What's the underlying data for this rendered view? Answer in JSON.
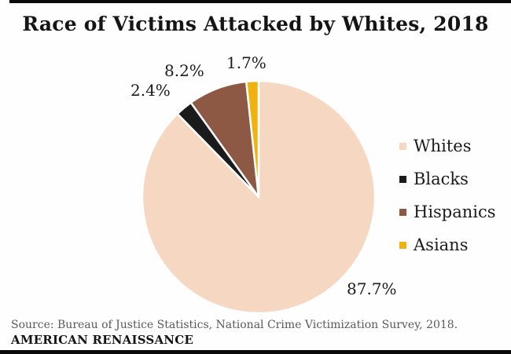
{
  "page": {
    "title": "Race of Victims Attacked by Whites, 2018"
  },
  "chart_data": {
    "type": "pie",
    "title": "Race of Victims Attacked by Whites, 2018",
    "unit": "%",
    "legend_position": "right",
    "slices": [
      {
        "name": "Whites",
        "value": 87.7,
        "label": "87.7%",
        "color": "#F6D7C2"
      },
      {
        "name": "Blacks",
        "value": 2.4,
        "label": "2.4%",
        "color": "#1B1B1B"
      },
      {
        "name": "Hispanics",
        "value": 8.2,
        "label": "8.2%",
        "color": "#8D5944"
      },
      {
        "name": "Asians",
        "value": 1.7,
        "label": "1.7%",
        "color": "#EFB311"
      }
    ]
  },
  "footer": {
    "source": "Source: Bureau of Justice Statistics, National Crime Victimization Survey, 2018.",
    "brand": "AMERICAN RENAISSANCE"
  }
}
